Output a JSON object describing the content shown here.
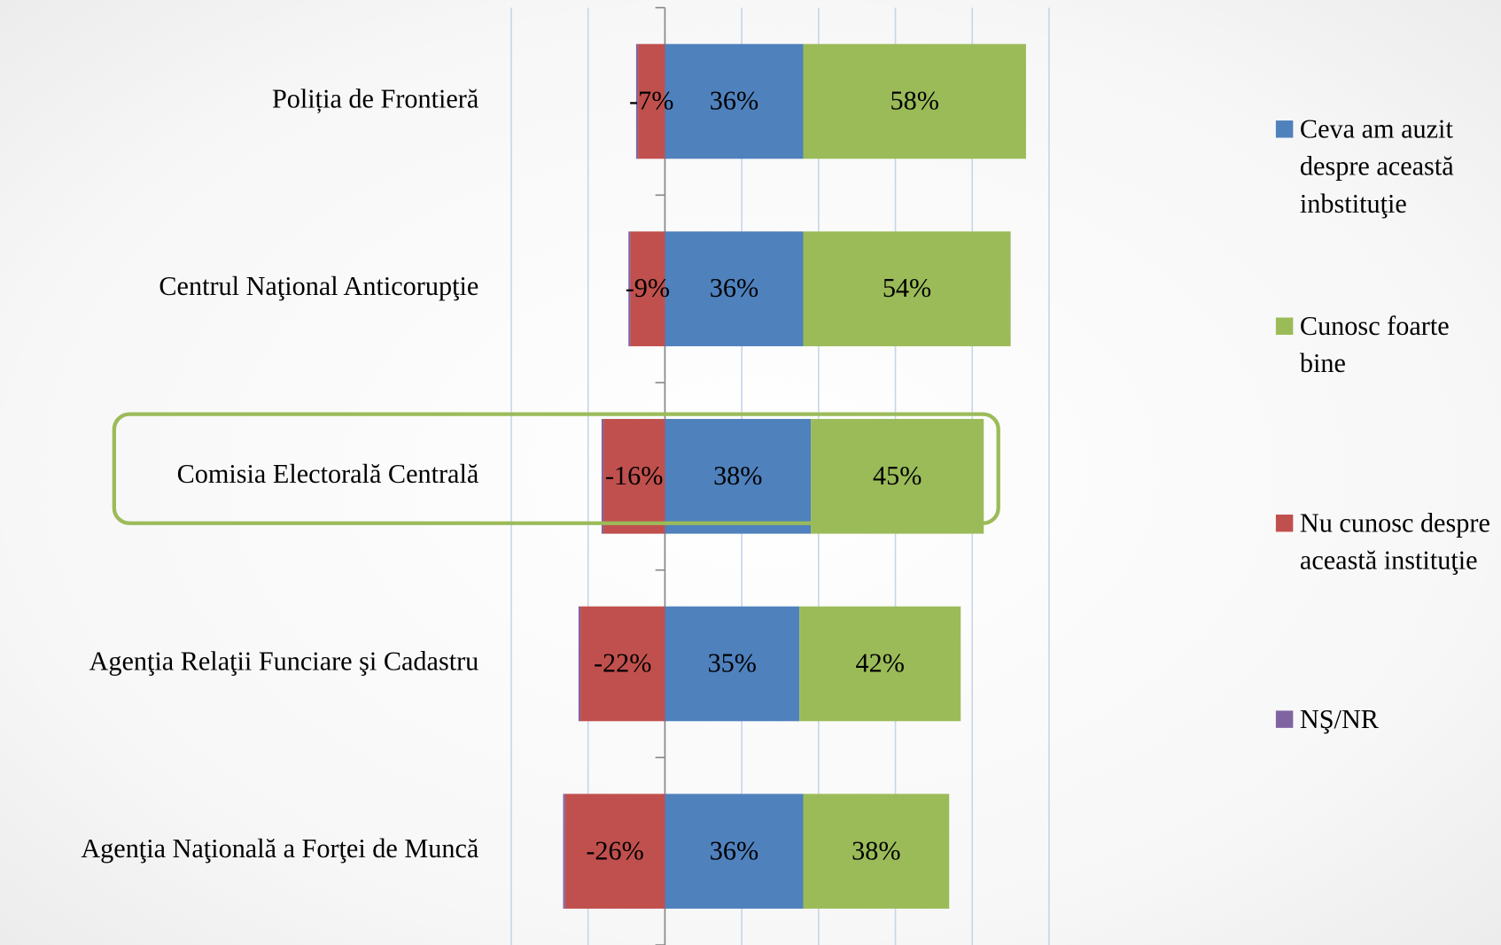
{
  "chart_data": {
    "type": "diverging_stacked_bar",
    "categories": [
      "Poliția de Frontieră",
      "Centrul Naţional Anticorupţie",
      "Comisia Electorală Centrală",
      "Agenţia Relaţii Funciare şi Cadastru",
      "Agenţia Naţională a Forţei de Muncă"
    ],
    "series": [
      {
        "name": "Ceva am  auzit despre această inbstituţie",
        "color": "#4f81bd",
        "values": [
          36,
          36,
          38,
          35,
          36
        ],
        "value_labels": [
          "36%",
          "36%",
          "38%",
          "35%",
          "36%"
        ]
      },
      {
        "name": "Cunosc foarte bine",
        "color": "#9bbb59",
        "values": [
          58,
          54,
          45,
          42,
          38
        ],
        "value_labels": [
          "58%",
          "54%",
          "45%",
          "42%",
          "38%"
        ]
      },
      {
        "name": "Nu cunosc despre această instituţie",
        "color": "#c0504d",
        "values": [
          -7,
          -9,
          -16,
          -22,
          -26
        ],
        "value_labels": [
          "-7%",
          "-9%",
          "-16%",
          "-22%",
          "-26%"
        ]
      },
      {
        "name": "NŞ/NR",
        "color": "#8064a2",
        "values": [
          -0.5,
          -0.5,
          -0.5,
          -0.5,
          -0.5
        ]
      }
    ],
    "xlim": [
      -40,
      100
    ],
    "xticks": [
      -40,
      -20,
      0,
      20,
      40,
      60,
      80,
      100
    ],
    "grid": true,
    "legend": "right"
  }
}
